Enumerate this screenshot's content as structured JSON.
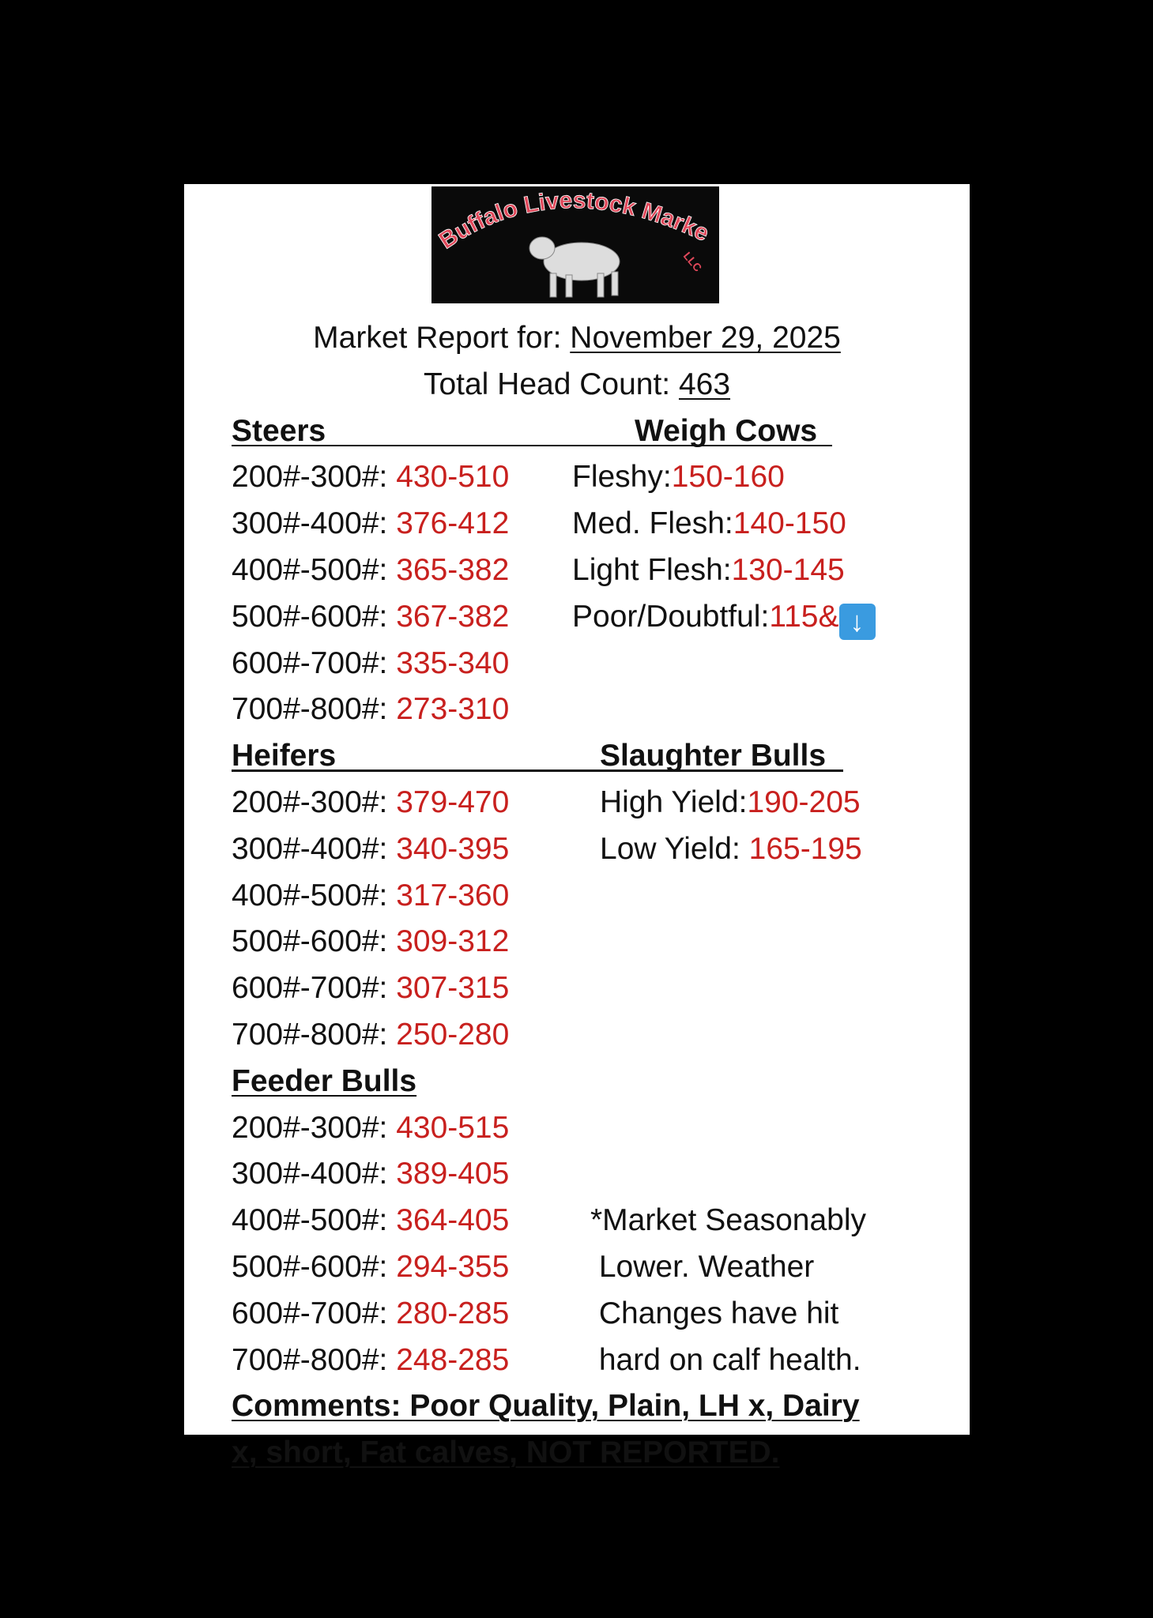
{
  "logo": {
    "text": "Buffalo Livestock Market",
    "suffix": "LLC"
  },
  "header": {
    "report_label": "Market Report for: ",
    "report_date": "November 29, 2025",
    "count_label": "Total Head Count: ",
    "count_value": "463"
  },
  "steers": {
    "title": "Steers",
    "rows": [
      {
        "label": "200#-300#: ",
        "value": "430-510"
      },
      {
        "label": "300#-400#: ",
        "value": "376-412"
      },
      {
        "label": "400#-500#: ",
        "value": "365-382"
      },
      {
        "label": "500#-600#: ",
        "value": "367-382"
      },
      {
        "label": "600#-700#: ",
        "value": "335-340"
      },
      {
        "label": "700#-800#: ",
        "value": "273-310"
      }
    ]
  },
  "weigh_cows": {
    "title": "Weigh Cows",
    "rows": [
      {
        "label": "Fleshy:",
        "value": "150-160"
      },
      {
        "label": "Med. Flesh:",
        "value": "140-150"
      },
      {
        "label": "Light Flesh:",
        "value": "130-145"
      },
      {
        "label": "Poor/Doubtful:",
        "value": "115&",
        "icon": "down-arrow-icon"
      }
    ]
  },
  "heifers": {
    "title": "Heifers",
    "rows": [
      {
        "label": "200#-300#: ",
        "value": "379-470"
      },
      {
        "label": "300#-400#: ",
        "value": "340-395"
      },
      {
        "label": "400#-500#: ",
        "value": "317-360"
      },
      {
        "label": "500#-600#: ",
        "value": "309-312"
      },
      {
        "label": "600#-700#: ",
        "value": "307-315"
      },
      {
        "label": "700#-800#: ",
        "value": "250-280"
      }
    ]
  },
  "slaughter_bulls": {
    "title": "Slaughter Bulls",
    "rows": [
      {
        "label": "High Yield:",
        "value": "190-205"
      },
      {
        "label": "Low Yield: ",
        "value": "165-195"
      }
    ]
  },
  "feeder_bulls": {
    "title": "Feeder Bulls",
    "rows": [
      {
        "label": "200#-300#: ",
        "value": "430-515"
      },
      {
        "label": "300#-400#: ",
        "value": "389-405"
      },
      {
        "label": "400#-500#: ",
        "value": "364-405"
      },
      {
        "label": "500#-600#: ",
        "value": "294-355"
      },
      {
        "label": "600#-700#: ",
        "value": "280-285"
      },
      {
        "label": "700#-800#: ",
        "value": "248-285"
      }
    ]
  },
  "note": [
    "*Market Seasonably",
    " Lower. Weather",
    " Changes have hit",
    " hard on calf health."
  ],
  "comments": [
    "Comments: Poor Quality, Plain, LH x, Dairy",
    "x, short, Fat calves, NOT REPORTED."
  ],
  "colors": {
    "price": "#c8201e",
    "text": "#111111",
    "background": "#000000",
    "card": "#ffffff"
  }
}
